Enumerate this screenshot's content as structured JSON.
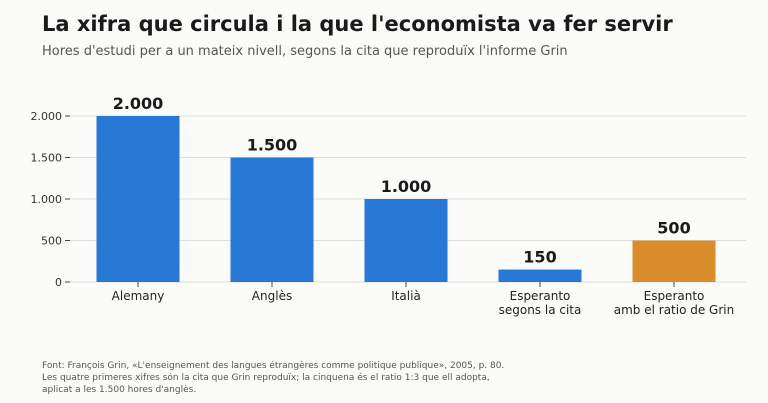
{
  "title": "La xifra que circula i la que l'economista va fer servir",
  "subtitle": "Hores d'estudi per a un mateix nivell, segons la cita que reproduïx l'informe Grin",
  "chart_data": {
    "type": "bar",
    "categories": [
      [
        "Alemany"
      ],
      [
        "Anglès"
      ],
      [
        "Italià"
      ],
      [
        "Esperanto",
        "segons la cita"
      ],
      [
        "Esperanto",
        "amb el ratio de Grin"
      ]
    ],
    "values": [
      2000,
      1500,
      1000,
      150,
      500
    ],
    "value_labels": [
      "2.000",
      "1.500",
      "1.000",
      "150",
      "500"
    ],
    "colors": [
      "#2878d6",
      "#2878d6",
      "#2878d6",
      "#2878d6",
      "#d98e2b"
    ],
    "ylim": [
      0,
      2000
    ],
    "yticks": [
      0,
      500,
      1000,
      1500,
      2000
    ],
    "ytick_labels": [
      "0",
      "500",
      "1.000",
      "1.500",
      "2.000"
    ],
    "grid": true,
    "xlabel": "",
    "ylabel": ""
  },
  "footnote": [
    "Font: François Grin, «L'enseignement des langues étrangères comme politique publique», 2005, p. 80.",
    "Les quatre primeres xifres són la cita que Grin reproduïx; la cinquena és el ratio 1:3 que ell adopta,",
    "aplicat a les 1.500 hores d'anglès."
  ]
}
